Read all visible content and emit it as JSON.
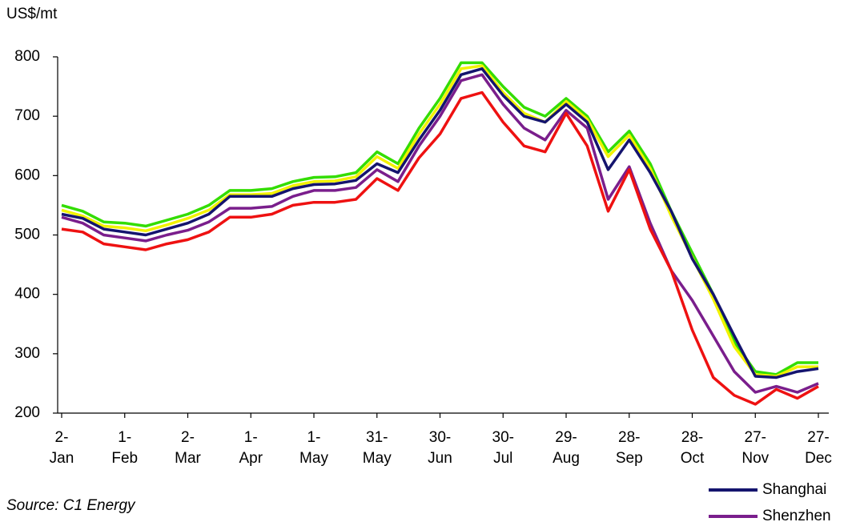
{
  "chart_data": {
    "type": "line",
    "y_label": "US$/mt",
    "source": "Source: C1 Energy",
    "categories": [
      "2-Jan",
      null,
      null,
      "1-Feb",
      null,
      null,
      "2-Mar",
      null,
      null,
      "1-Apr",
      null,
      null,
      "1-May",
      null,
      null,
      "31-May",
      null,
      null,
      "30-Jun",
      null,
      null,
      "30-Jul",
      null,
      null,
      "29-Aug",
      null,
      null,
      "28-Sep",
      null,
      null,
      "28-Oct",
      null,
      null,
      "27-Nov",
      null,
      null,
      "27-Dec"
    ],
    "series": [
      {
        "color": "#33dd00",
        "values": [
          550,
          540,
          522,
          520,
          515,
          525,
          535,
          550,
          575,
          575,
          578,
          590,
          597,
          598,
          605,
          640,
          620,
          680,
          730,
          790,
          790,
          750,
          715,
          700,
          730,
          700,
          640,
          675,
          620,
          540,
          470,
          400,
          320,
          270,
          265,
          285,
          285
        ]
      },
      {
        "color": "#f2f200",
        "values": [
          542,
          532,
          515,
          512,
          507,
          517,
          528,
          542,
          568,
          568,
          570,
          583,
          590,
          591,
          598,
          632,
          612,
          670,
          720,
          780,
          785,
          740,
          705,
          690,
          725,
          695,
          632,
          668,
          612,
          532,
          462,
          392,
          312,
          265,
          262,
          278,
          278
        ]
      },
      {
        "name": "Shanghai",
        "color": "#14146e",
        "values": [
          535,
          528,
          510,
          505,
          500,
          510,
          520,
          535,
          565,
          565,
          565,
          578,
          585,
          586,
          592,
          620,
          605,
          660,
          710,
          770,
          780,
          735,
          700,
          690,
          720,
          690,
          610,
          660,
          605,
          540,
          460,
          400,
          330,
          262,
          260,
          270,
          275
        ]
      },
      {
        "name": "Shenzhen",
        "color": "#7a1e8c",
        "values": [
          530,
          520,
          500,
          495,
          490,
          500,
          508,
          522,
          545,
          545,
          548,
          565,
          575,
          575,
          580,
          610,
          590,
          650,
          700,
          760,
          770,
          720,
          680,
          660,
          710,
          680,
          560,
          615,
          520,
          440,
          390,
          330,
          270,
          235,
          245,
          235,
          250
        ]
      },
      {
        "color": "#ee1111",
        "values": [
          510,
          505,
          485,
          480,
          475,
          485,
          492,
          505,
          530,
          530,
          535,
          550,
          555,
          555,
          560,
          595,
          575,
          630,
          670,
          730,
          740,
          690,
          650,
          640,
          705,
          650,
          540,
          610,
          510,
          440,
          340,
          260,
          230,
          215,
          240,
          225,
          245
        ]
      }
    ],
    "ylim": [
      200,
      800
    ],
    "yticks": [
      200,
      300,
      400,
      500,
      600,
      700,
      800
    ]
  }
}
